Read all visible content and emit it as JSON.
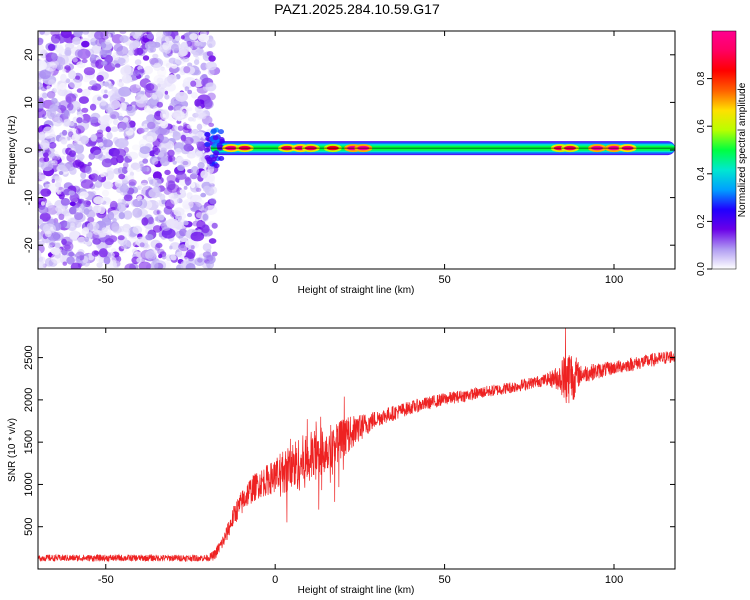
{
  "title": "PAZ1.2025.284.10.59.G17",
  "chart_data": [
    {
      "type": "heatmap",
      "name": "spectrogram",
      "xlabel": "Height of straight line (km)",
      "ylabel": "Frequency (Hz)",
      "xlim": [
        -70,
        118
      ],
      "ylim": [
        -25,
        25
      ],
      "xticks": [
        -50,
        0,
        50,
        100
      ],
      "yticks": [
        -20,
        -10,
        0,
        10,
        20
      ],
      "noise_region_x": [
        -70,
        -19
      ],
      "signal_line_frequency_hz": 0.4,
      "signal_start_x": -19,
      "hotspots": [
        {
          "x": -13,
          "amp": 0.95
        },
        {
          "x": -9,
          "amp": 0.9
        },
        {
          "x": 3.5,
          "amp": 0.9
        },
        {
          "x": 7.5,
          "amp": 0.95
        },
        {
          "x": 10.5,
          "amp": 0.9
        },
        {
          "x": 17,
          "amp": 0.85
        },
        {
          "x": 23,
          "amp": 1.0
        },
        {
          "x": 26,
          "amp": 1.0
        },
        {
          "x": 84,
          "amp": 0.9
        },
        {
          "x": 87,
          "amp": 0.9
        },
        {
          "x": 95,
          "amp": 1.0
        },
        {
          "x": 100,
          "amp": 1.0
        },
        {
          "x": 104,
          "amp": 0.95
        }
      ],
      "colorbar": {
        "label": "Normalized spectral amplitude",
        "range": [
          0.0,
          1.0
        ],
        "ticks": [
          "0.0",
          "0.2",
          "0.4",
          "0.6",
          "0.8"
        ],
        "tick_values": [
          0.0,
          0.2,
          0.4,
          0.6,
          0.8
        ],
        "colormap": [
          "#ffffff",
          "#b09cf2",
          "#6a00e8",
          "#2000ff",
          "#00a0ff",
          "#00e8d0",
          "#00ff40",
          "#b8ff00",
          "#ffe000",
          "#ff6000",
          "#ff0000",
          "#ff0060",
          "#ff0090"
        ]
      }
    },
    {
      "type": "line",
      "name": "snr",
      "xlabel": "Height of straight line (km)",
      "ylabel": "SNR (10 * v/v)",
      "xlim": [
        -70,
        118
      ],
      "ylim": [
        0,
        2850
      ],
      "xticks": [
        -50,
        0,
        50,
        100
      ],
      "yticks": [
        500,
        1000,
        1500,
        2000,
        2500
      ],
      "color": "#ee2222",
      "trend": {
        "x": [
          -70,
          -20,
          -18,
          -15,
          -12,
          -8,
          -5,
          0,
          5,
          10,
          15,
          20,
          25,
          30,
          40,
          50,
          60,
          70,
          80,
          85,
          90,
          100,
          110,
          118
        ],
        "y": [
          130,
          130,
          160,
          350,
          650,
          900,
          1000,
          1100,
          1200,
          1300,
          1420,
          1550,
          1670,
          1780,
          1910,
          2010,
          2080,
          2150,
          2240,
          2270,
          2300,
          2380,
          2460,
          2520
        ]
      },
      "noise_amplitude": {
        "x": [
          -70,
          -20,
          -15,
          -10,
          -5,
          0,
          5,
          10,
          15,
          20,
          25,
          30,
          40,
          60,
          80,
          84,
          86,
          88,
          90,
          100,
          118
        ],
        "y": [
          40,
          40,
          90,
          150,
          170,
          200,
          320,
          320,
          280,
          230,
          160,
          100,
          80,
          70,
          70,
          160,
          350,
          300,
          110,
          80,
          80
        ]
      }
    }
  ]
}
